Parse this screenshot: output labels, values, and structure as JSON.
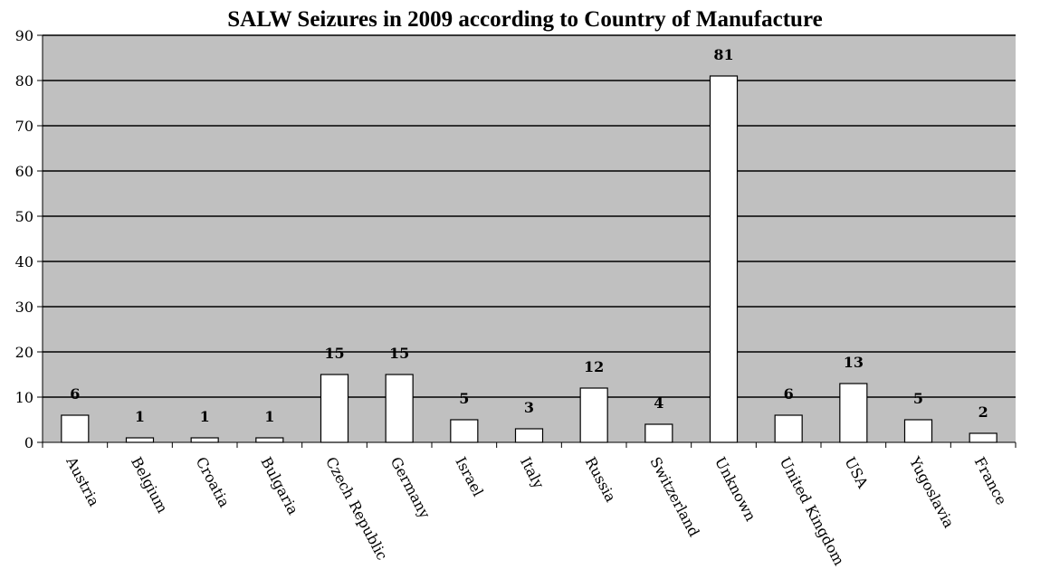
{
  "chart_data": {
    "type": "bar",
    "title": "SALW Seizures in 2009 according to Country of Manufacture",
    "xlabel": "",
    "ylabel": "",
    "categories": [
      "Austria",
      "Belgium",
      "Croatia",
      "Bulgaria",
      "Czech Republic",
      "Germany",
      "Israel",
      "Italy",
      "Russia",
      "Switzerland",
      "Unknown",
      "United Kingdom",
      "USA",
      "Yugoslavia",
      "France"
    ],
    "values": [
      6,
      1,
      1,
      1,
      15,
      15,
      5,
      3,
      12,
      4,
      81,
      6,
      13,
      5,
      2
    ],
    "data_labels": [
      "6",
      "1",
      "1",
      "1",
      "15",
      "15",
      "5",
      "3",
      "12",
      "4",
      "81",
      "6",
      "13",
      "5",
      "2"
    ],
    "ylim": [
      0,
      90
    ],
    "yticks": [
      0,
      10,
      20,
      30,
      40,
      50,
      60,
      70,
      80,
      90
    ],
    "grid": true,
    "plot_background": "#c0c0c0",
    "bar_fill": "#ffffff",
    "bar_stroke": "#000000"
  }
}
